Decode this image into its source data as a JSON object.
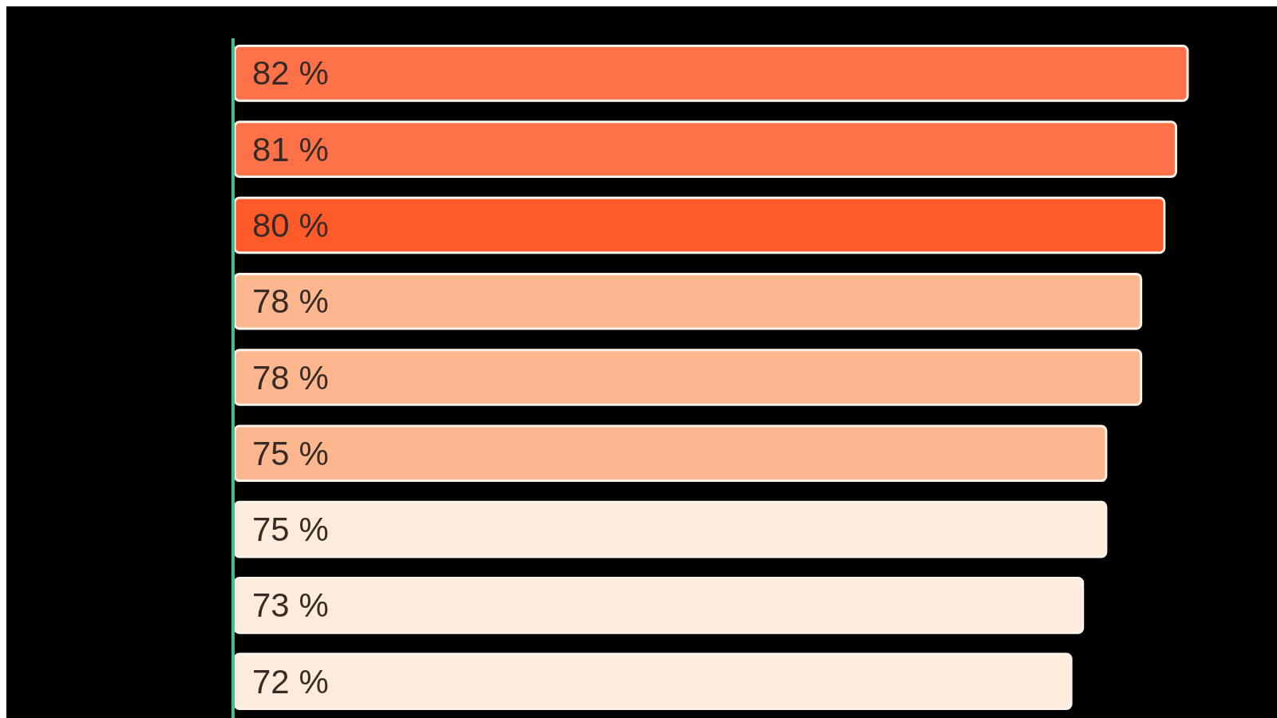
{
  "chart_data": {
    "type": "bar",
    "orientation": "horizontal",
    "categories": [
      null,
      null,
      null,
      null,
      null,
      null,
      null,
      null,
      null
    ],
    "values": [
      82,
      81,
      80,
      78,
      78,
      75,
      75,
      73,
      72
    ],
    "colors": [
      "#fe7249",
      "#fe7249",
      "#ff5a2a",
      "#fdb78f",
      "#fdb78f",
      "#fdb78f",
      "#fdecdb",
      "#fdecdb",
      "#fdecdb"
    ],
    "value_labels": [
      "82 %",
      "81 %",
      "80 %",
      "78 %",
      "78 %",
      "75 %",
      "75 %",
      "73 %",
      "72 %"
    ]
  }
}
